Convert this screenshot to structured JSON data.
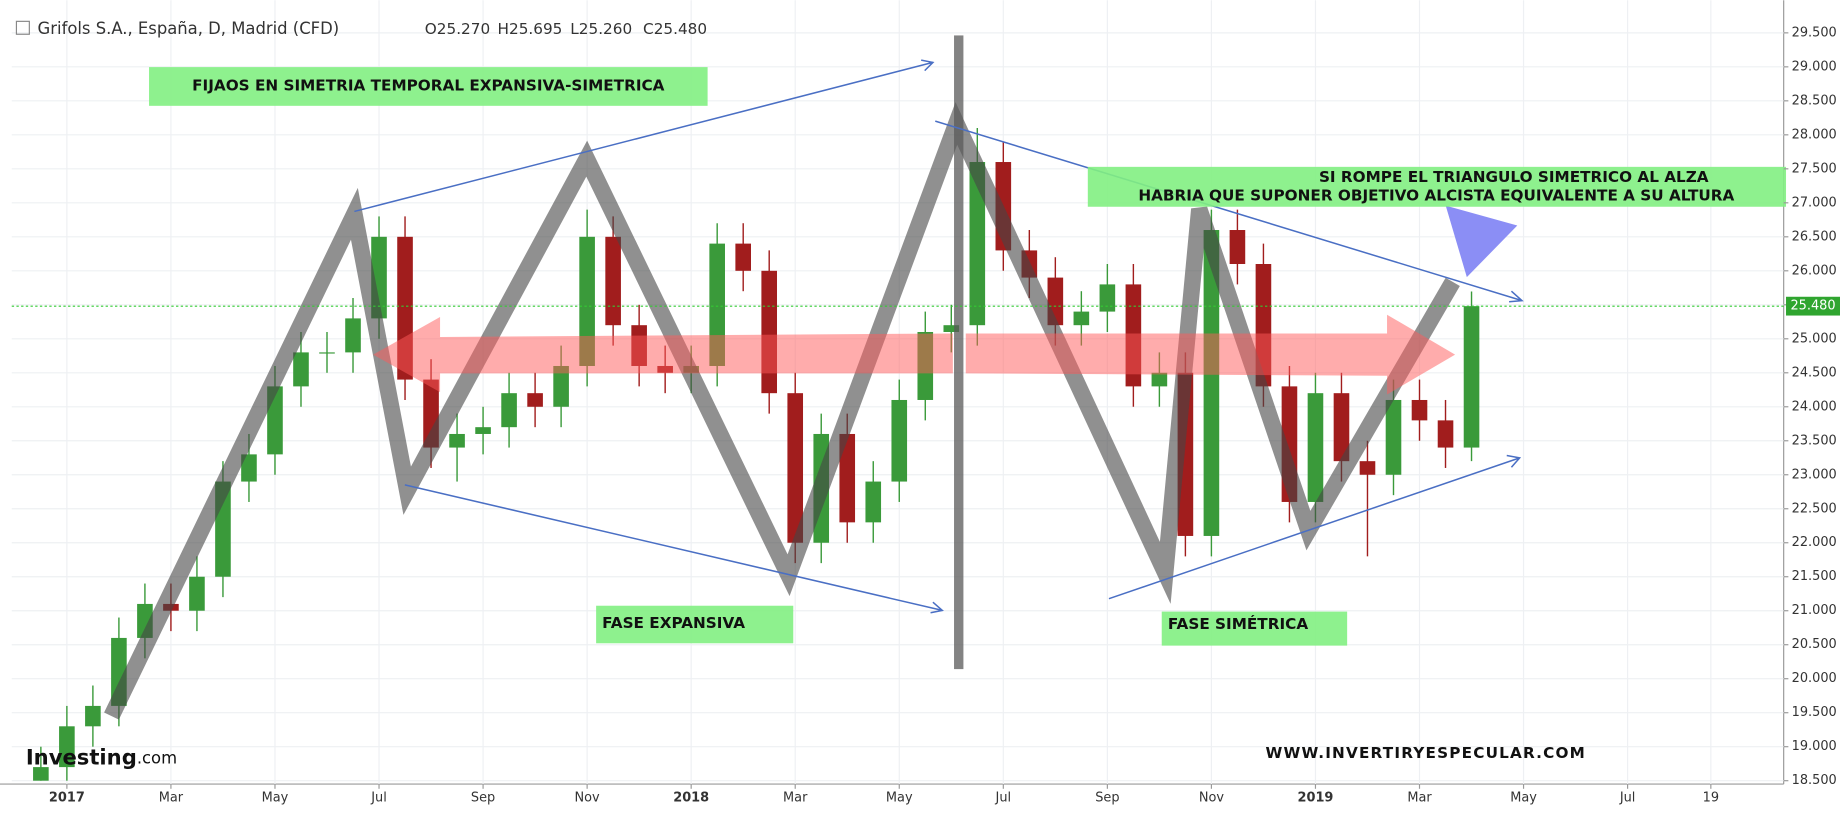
{
  "header": {
    "title": "Grifols S.A., España, D, Madrid (CFD)",
    "ohlc": [
      "O25.270",
      "H25.695",
      "L25.260",
      "C25.480"
    ]
  },
  "chart_data": {
    "type": "candlestick",
    "annotations": [
      "FIJAOS EN SIMETRIA TEMPORAL EXPANSIVA-SIMETRICA",
      "SI ROMPE EL TRIANGULO SIMETRICO AL ALZA",
      "HABRIA QUE SUPONER OBJETIVO ALCISTA EQUIVALENTE A SU ALTURA",
      "FASE EXPANSIVA",
      "FASE SIMÉTRICA",
      "WWW.INVERTIRYESPECULAR.COM"
    ],
    "watermark": [
      "Investing",
      ".com"
    ],
    "up_color": "#3a9a3a",
    "down_color": "#a11d1d",
    "grid": true,
    "x": [
      -0.5,
      0,
      0.5,
      1,
      1.5,
      2,
      2.5,
      3,
      3.5,
      4,
      4.5,
      5,
      5.5,
      6,
      6.5,
      7,
      7.5,
      8,
      8.5,
      9,
      9.5,
      10,
      10.5,
      11,
      11.5,
      12,
      12.5,
      13,
      13.5,
      14,
      14.5,
      15,
      15.5,
      16,
      16.5,
      17,
      17.5,
      18,
      18.5,
      19,
      19.5,
      20,
      20.5,
      21,
      21.5,
      22,
      22.5,
      23,
      23.5,
      24,
      24.5,
      25,
      25.5,
      26,
      26.5,
      27
    ],
    "open": [
      18.5,
      18.7,
      19.3,
      19.6,
      20.6,
      21.1,
      21.0,
      21.5,
      22.9,
      23.3,
      24.3,
      24.8,
      24.8,
      25.3,
      26.5,
      24.4,
      23.4,
      23.6,
      23.7,
      24.2,
      24.0,
      24.6,
      26.5,
      25.2,
      24.6,
      24.5,
      24.6,
      26.4,
      26.0,
      24.2,
      22.0,
      23.6,
      22.3,
      22.9,
      24.1,
      25.1,
      25.2,
      27.6,
      26.3,
      25.9,
      25.2,
      25.4,
      25.8,
      24.3,
      24.5,
      22.1,
      26.6,
      26.1,
      24.3,
      22.6,
      24.2,
      23.2,
      23.0,
      24.1,
      23.8,
      23.4
    ],
    "high": [
      19.0,
      19.6,
      19.9,
      20.9,
      21.4,
      21.4,
      21.8,
      23.2,
      23.6,
      24.6,
      25.1,
      25.1,
      25.6,
      26.8,
      26.8,
      24.7,
      23.9,
      24.0,
      24.5,
      24.5,
      24.9,
      26.9,
      26.8,
      25.5,
      24.9,
      24.9,
      26.7,
      26.7,
      26.3,
      24.5,
      23.9,
      23.9,
      23.2,
      24.4,
      25.4,
      25.5,
      28.1,
      27.9,
      26.6,
      26.2,
      25.7,
      26.1,
      26.1,
      24.8,
      24.8,
      26.9,
      26.9,
      26.4,
      24.6,
      24.5,
      24.5,
      23.5,
      24.4,
      24.4,
      24.1,
      25.695
    ],
    "low": [
      18.5,
      18.5,
      19.0,
      19.3,
      20.3,
      20.7,
      20.7,
      21.2,
      22.6,
      23.0,
      24.0,
      24.5,
      24.5,
      25.0,
      24.1,
      23.1,
      22.9,
      23.3,
      23.4,
      23.7,
      23.7,
      24.3,
      24.9,
      24.3,
      24.2,
      24.2,
      24.3,
      25.7,
      23.9,
      21.7,
      21.7,
      22.0,
      22.0,
      22.6,
      23.8,
      24.8,
      24.9,
      26.0,
      25.6,
      24.9,
      24.9,
      25.1,
      24.0,
      24.0,
      21.8,
      21.8,
      25.8,
      24.0,
      22.3,
      22.3,
      22.9,
      21.8,
      22.7,
      23.5,
      23.1,
      23.2
    ],
    "close": [
      18.7,
      19.3,
      19.6,
      20.6,
      21.1,
      21.0,
      21.5,
      22.9,
      23.3,
      24.3,
      24.8,
      24.8,
      25.3,
      26.5,
      24.4,
      23.4,
      23.6,
      23.7,
      24.2,
      24.0,
      24.6,
      26.5,
      25.2,
      24.6,
      24.5,
      24.6,
      26.4,
      26.0,
      24.2,
      22.0,
      23.6,
      22.3,
      22.9,
      24.1,
      25.1,
      25.2,
      27.6,
      26.3,
      25.9,
      25.2,
      25.4,
      25.8,
      24.3,
      24.5,
      22.1,
      26.6,
      26.1,
      24.3,
      22.6,
      24.2,
      23.2,
      23.0,
      24.1,
      23.8,
      23.4,
      25.48
    ],
    "last_price": {
      "value": 25.48,
      "label": "25.480"
    },
    "xlim": [
      -1.06,
      33.0
    ],
    "xticks": [
      {
        "value": 0,
        "label": "2017"
      },
      {
        "value": 2,
        "label": "Mar"
      },
      {
        "value": 4,
        "label": "May"
      },
      {
        "value": 6,
        "label": "Jul"
      },
      {
        "value": 8,
        "label": "Sep"
      },
      {
        "value": 10,
        "label": "Nov"
      },
      {
        "value": 12,
        "label": "2018"
      },
      {
        "value": 14,
        "label": "Mar"
      },
      {
        "value": 16,
        "label": "May"
      },
      {
        "value": 18,
        "label": "Jul"
      },
      {
        "value": 20,
        "label": "Sep"
      },
      {
        "value": 22,
        "label": "Nov"
      },
      {
        "value": 24,
        "label": "2019"
      },
      {
        "value": 26,
        "label": "Mar"
      },
      {
        "value": 28,
        "label": "May"
      },
      {
        "value": 30,
        "label": "Jul"
      },
      {
        "value": 31.6,
        "label": "19"
      }
    ],
    "ylim": [
      18.45,
      29.98
    ],
    "yticks": [
      {
        "value": 18.5,
        "label": "18.500"
      },
      {
        "value": 19,
        "label": "19.000"
      },
      {
        "value": 19.5,
        "label": "19.500"
      },
      {
        "value": 20,
        "label": "20.000"
      },
      {
        "value": 20.5,
        "label": "20.500"
      },
      {
        "value": 21,
        "label": "21.000"
      },
      {
        "value": 21.5,
        "label": "21.500"
      },
      {
        "value": 22,
        "label": "22.000"
      },
      {
        "value": 22.5,
        "label": "22.500"
      },
      {
        "value": 23,
        "label": "23.000"
      },
      {
        "value": 23.5,
        "label": "23.500"
      },
      {
        "value": 24,
        "label": "24.000"
      },
      {
        "value": 24.5,
        "label": "24.500"
      },
      {
        "value": 25,
        "label": "25.000"
      },
      {
        "value": 25.5,
        "label": "25.500"
      },
      {
        "value": 26,
        "label": "26.000"
      },
      {
        "value": 26.5,
        "label": "26.500"
      },
      {
        "value": 27,
        "label": "27.000"
      },
      {
        "value": 27.5,
        "label": "27.500"
      },
      {
        "value": 28,
        "label": "28.000"
      },
      {
        "value": 28.5,
        "label": "28.500"
      },
      {
        "value": 29,
        "label": "29.000"
      },
      {
        "value": 29.5,
        "label": "29.500"
      }
    ]
  }
}
